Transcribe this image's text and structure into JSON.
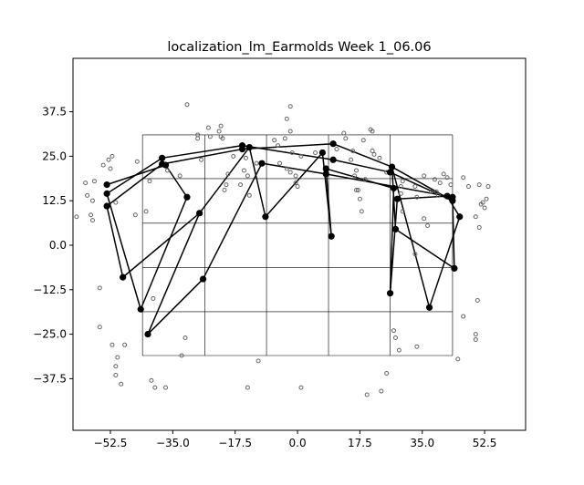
{
  "chart_data": {
    "type": "scatter",
    "title": "localization_lm_Earmolds Week 1_06.06",
    "xlabel": "",
    "ylabel": "",
    "xlim": [
      -63.0,
      64.0
    ],
    "ylim": [
      -52.0,
      52.5
    ],
    "x_ticks": [
      -52.5,
      -35.0,
      -17.5,
      0.0,
      17.5,
      35.0,
      52.5
    ],
    "x_tick_labels": [
      "−52.5",
      "−35.0",
      "−17.5",
      "0.0",
      "17.5",
      "35.0",
      "52.5"
    ],
    "y_ticks": [
      -37.5,
      -25.0,
      -12.5,
      0.0,
      12.5,
      25.0,
      37.5
    ],
    "y_tick_labels": [
      "−37.5",
      "−25.0",
      "−12.5",
      "0.0",
      "12.5",
      "25.0",
      "37.5"
    ],
    "legend": "none",
    "grid_box": {
      "x_lines": [
        -43.5,
        -26.0,
        -8.7,
        8.7,
        26.0,
        43.5
      ],
      "y_lines": [
        -31.0,
        -18.7,
        -6.3,
        6.2,
        18.7,
        31.0
      ]
    },
    "colors": {
      "response_points": "#666666",
      "target_points": "#000000",
      "lines": "#000000"
    },
    "targets": [
      [
        -53.5,
        17.0
      ],
      [
        -53.5,
        14.5
      ],
      [
        -53.5,
        11.0
      ],
      [
        -49.0,
        -9.0
      ],
      [
        -44.0,
        -18.0
      ],
      [
        -42.0,
        -25.0
      ],
      [
        -38.0,
        24.5
      ],
      [
        -38.0,
        22.8
      ],
      [
        -37.0,
        22.5
      ],
      [
        -31.0,
        13.5
      ],
      [
        -27.5,
        9.0
      ],
      [
        -26.5,
        -9.5
      ],
      [
        -15.5,
        28.0
      ],
      [
        -15.5,
        27.0
      ],
      [
        -13.5,
        27.5
      ],
      [
        -10.0,
        23.0
      ],
      [
        -9.0,
        8.0
      ],
      [
        7.0,
        26.0
      ],
      [
        8.0,
        21.5
      ],
      [
        8.0,
        20.0
      ],
      [
        10.0,
        28.5
      ],
      [
        10.0,
        24.0
      ],
      [
        9.5,
        2.5
      ],
      [
        26.0,
        20.5
      ],
      [
        26.5,
        22.0
      ],
      [
        27.0,
        16.0
      ],
      [
        27.5,
        4.5
      ],
      [
        28.0,
        13.0
      ],
      [
        26.0,
        -13.5
      ],
      [
        37.0,
        -17.5
      ],
      [
        42.0,
        13.8
      ],
      [
        43.5,
        13.5
      ],
      [
        43.5,
        12.5
      ],
      [
        44.0,
        -6.5
      ],
      [
        45.5,
        8.0
      ]
    ],
    "segments": [
      [
        [
          -53.5,
          17.0
        ],
        [
          -37.0,
          22.5
        ]
      ],
      [
        [
          -37.0,
          22.5
        ],
        [
          -31.0,
          13.5
        ]
      ],
      [
        [
          -31.0,
          13.5
        ],
        [
          -44.0,
          -18.0
        ]
      ],
      [
        [
          -44.0,
          -18.0
        ],
        [
          -53.5,
          14.5
        ]
      ],
      [
        [
          -53.5,
          14.5
        ],
        [
          -38.0,
          24.5
        ]
      ],
      [
        [
          -38.0,
          24.5
        ],
        [
          -15.5,
          28.0
        ]
      ],
      [
        [
          -15.5,
          28.0
        ],
        [
          10.0,
          24.0
        ]
      ],
      [
        [
          10.0,
          24.0
        ],
        [
          26.0,
          20.5
        ]
      ],
      [
        [
          26.0,
          20.5
        ],
        [
          43.5,
          12.5
        ]
      ],
      [
        [
          43.5,
          12.5
        ],
        [
          26.5,
          22.0
        ]
      ],
      [
        [
          26.5,
          22.0
        ],
        [
          10.0,
          28.5
        ]
      ],
      [
        [
          10.0,
          28.5
        ],
        [
          -15.5,
          27.0
        ]
      ],
      [
        [
          -15.5,
          27.0
        ],
        [
          -38.0,
          22.8
        ]
      ],
      [
        [
          -38.0,
          22.8
        ],
        [
          -53.5,
          11.0
        ]
      ],
      [
        [
          -53.5,
          11.0
        ],
        [
          -49.0,
          -9.0
        ]
      ],
      [
        [
          -49.0,
          -9.0
        ],
        [
          -27.5,
          9.0
        ]
      ],
      [
        [
          -27.5,
          9.0
        ],
        [
          -13.5,
          27.5
        ]
      ],
      [
        [
          -13.5,
          27.5
        ],
        [
          -9.0,
          8.0
        ]
      ],
      [
        [
          -9.0,
          8.0
        ],
        [
          7.0,
          26.0
        ]
      ],
      [
        [
          7.0,
          26.0
        ],
        [
          9.5,
          2.5
        ]
      ],
      [
        [
          9.5,
          2.5
        ],
        [
          8.0,
          21.5
        ]
      ],
      [
        [
          8.0,
          21.5
        ],
        [
          27.0,
          16.0
        ]
      ],
      [
        [
          27.0,
          16.0
        ],
        [
          26.0,
          -13.5
        ]
      ],
      [
        [
          26.0,
          -13.5
        ],
        [
          28.0,
          13.0
        ]
      ],
      [
        [
          28.0,
          13.0
        ],
        [
          42.0,
          13.8
        ]
      ],
      [
        [
          42.0,
          13.8
        ],
        [
          45.5,
          8.0
        ]
      ],
      [
        [
          45.5,
          8.0
        ],
        [
          37.0,
          -17.5
        ]
      ],
      [
        [
          37.0,
          -17.5
        ],
        [
          26.5,
          22.0
        ]
      ],
      [
        [
          26.5,
          22.0
        ],
        [
          27.5,
          4.5
        ]
      ],
      [
        [
          27.5,
          4.5
        ],
        [
          44.0,
          -6.5
        ]
      ],
      [
        [
          44.0,
          -6.5
        ],
        [
          43.5,
          13.5
        ]
      ],
      [
        [
          43.5,
          13.5
        ],
        [
          8.0,
          20.0
        ]
      ],
      [
        [
          8.0,
          20.0
        ],
        [
          -10.0,
          23.0
        ]
      ],
      [
        [
          -10.0,
          23.0
        ],
        [
          -26.5,
          -9.5
        ]
      ],
      [
        [
          -26.5,
          -9.5
        ],
        [
          -42.0,
          -25.0
        ]
      ],
      [
        [
          -42.0,
          -25.0
        ],
        [
          -27.5,
          9.0
        ]
      ]
    ],
    "responses": [
      [
        -62.0,
        8.0
      ],
      [
        -59.5,
        17.5
      ],
      [
        -59.0,
        14.0
      ],
      [
        -57.5,
        12.5
      ],
      [
        -58.0,
        8.5
      ],
      [
        -57.5,
        7.0
      ],
      [
        -57.0,
        18.0
      ],
      [
        -54.5,
        22.5
      ],
      [
        -53.0,
        24.0
      ],
      [
        -52.0,
        25.0
      ],
      [
        -52.5,
        21.5
      ],
      [
        -51.0,
        12.0
      ],
      [
        -55.5,
        -12.0
      ],
      [
        -55.5,
        -23.0
      ],
      [
        -52.0,
        -28.0
      ],
      [
        -50.5,
        -31.5
      ],
      [
        -48.5,
        -28.0
      ],
      [
        -51.0,
        -34.0
      ],
      [
        -51.0,
        -36.5
      ],
      [
        -49.5,
        -39.0
      ],
      [
        -45.0,
        23.5
      ],
      [
        -45.5,
        8.5
      ],
      [
        -42.5,
        9.5
      ],
      [
        -41.5,
        18.0
      ],
      [
        -40.5,
        -15.0
      ],
      [
        -41.0,
        -38.0
      ],
      [
        -40.0,
        -40.0
      ],
      [
        -37.0,
        -40.0
      ],
      [
        -36.5,
        21.0
      ],
      [
        -33.0,
        19.5
      ],
      [
        -31.5,
        -26.0
      ],
      [
        -32.5,
        -31.0
      ],
      [
        -31.0,
        39.5
      ],
      [
        -28.0,
        30.0
      ],
      [
        -28.0,
        31.0
      ],
      [
        -27.0,
        24.0
      ],
      [
        -25.0,
        33.0
      ],
      [
        -24.5,
        30.5
      ],
      [
        -22.0,
        32.0
      ],
      [
        -21.5,
        30.5
      ],
      [
        -21.5,
        33.5
      ],
      [
        -21.0,
        30.0
      ],
      [
        -20.5,
        15.5
      ],
      [
        -20.0,
        17.0
      ],
      [
        -19.5,
        20.0
      ],
      [
        -18.0,
        25.0
      ],
      [
        -16.0,
        17.0
      ],
      [
        -15.0,
        21.0
      ],
      [
        -14.5,
        24.5
      ],
      [
        -14.0,
        19.5
      ],
      [
        -13.5,
        14.0
      ],
      [
        -14.0,
        -40.0
      ],
      [
        -11.5,
        23.0
      ],
      [
        -11.0,
        -32.5
      ],
      [
        -6.5,
        29.5
      ],
      [
        -5.5,
        28.0
      ],
      [
        -5.0,
        23.0
      ],
      [
        -3.5,
        30.0
      ],
      [
        -3.0,
        35.5
      ],
      [
        -3.0,
        21.5
      ],
      [
        -2.0,
        32.0
      ],
      [
        -2.0,
        39.0
      ],
      [
        -2.0,
        20.5
      ],
      [
        -1.5,
        26.0
      ],
      [
        -0.5,
        19.5
      ],
      [
        -0.5,
        17.5
      ],
      [
        0.0,
        16.5
      ],
      [
        1.0,
        25.0
      ],
      [
        1.0,
        -40.0
      ],
      [
        5.0,
        26.0
      ],
      [
        11.0,
        27.0
      ],
      [
        13.0,
        31.5
      ],
      [
        13.5,
        30.0
      ],
      [
        15.0,
        24.0
      ],
      [
        15.5,
        26.5
      ],
      [
        16.0,
        19.5
      ],
      [
        16.5,
        21.0
      ],
      [
        16.5,
        15.5
      ],
      [
        17.0,
        15.5
      ],
      [
        17.5,
        13.0
      ],
      [
        18.0,
        9.5
      ],
      [
        18.5,
        29.5
      ],
      [
        19.0,
        18.5
      ],
      [
        19.5,
        -42.0
      ],
      [
        20.5,
        32.5
      ],
      [
        21.0,
        32.0
      ],
      [
        21.0,
        26.5
      ],
      [
        21.5,
        25.5
      ],
      [
        23.0,
        24.5
      ],
      [
        23.5,
        -41.0
      ],
      [
        25.0,
        20.5
      ],
      [
        25.0,
        -36.0
      ],
      [
        27.0,
        -24.0
      ],
      [
        27.5,
        -26.0
      ],
      [
        28.5,
        -29.5
      ],
      [
        29.5,
        18.0
      ],
      [
        29.0,
        16.5
      ],
      [
        29.5,
        9.5
      ],
      [
        29.0,
        14.5
      ],
      [
        33.0,
        16.5
      ],
      [
        33.0,
        -2.5
      ],
      [
        33.5,
        13.5
      ],
      [
        33.5,
        -28.5
      ],
      [
        35.5,
        19.5
      ],
      [
        35.5,
        7.5
      ],
      [
        36.5,
        5.5
      ],
      [
        37.5,
        15.0
      ],
      [
        38.5,
        18.5
      ],
      [
        39.0,
        15.0
      ],
      [
        39.5,
        14.0
      ],
      [
        40.0,
        17.5
      ],
      [
        41.0,
        20.0
      ],
      [
        42.0,
        19.0
      ],
      [
        43.0,
        17.0
      ],
      [
        45.0,
        -32.0
      ],
      [
        46.5,
        19.0
      ],
      [
        46.5,
        -20.0
      ],
      [
        48.0,
        16.5
      ],
      [
        50.0,
        8.0
      ],
      [
        50.0,
        -25.0
      ],
      [
        50.0,
        -26.5
      ],
      [
        50.5,
        -15.5
      ],
      [
        51.0,
        17.0
      ],
      [
        51.0,
        5.0
      ],
      [
        51.5,
        11.5
      ],
      [
        52.0,
        12.0
      ],
      [
        52.5,
        10.5
      ],
      [
        53.0,
        13.0
      ],
      [
        53.5,
        16.5
      ]
    ]
  }
}
